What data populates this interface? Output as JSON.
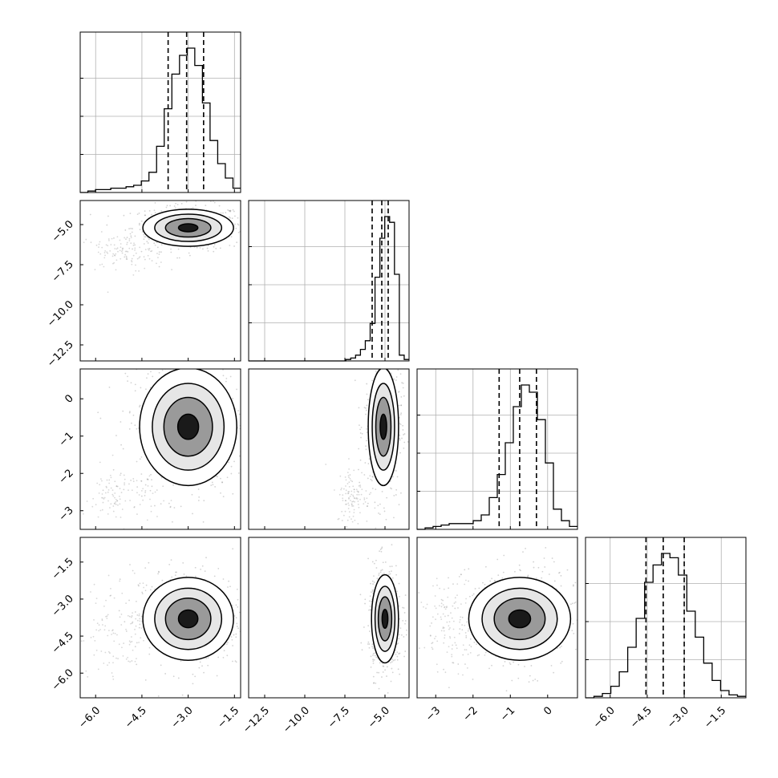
{
  "chart_data": {
    "type": "corner",
    "parameters": 4,
    "colors": {
      "line": "#000000",
      "grid": "#b0b0b0",
      "points": "#7f7f7f",
      "quantile_dash": "#000000"
    },
    "axes_ranges": [
      [
        -6.5,
        -1.3
      ],
      [
        -13.5,
        -3.5
      ],
      [
        -3.5,
        0.8
      ],
      [
        -7.0,
        -0.5
      ]
    ],
    "tick_values": [
      [
        -6.0,
        -4.5,
        -3.0,
        -1.5
      ],
      [
        -12.5,
        -10.0,
        -7.5,
        -5.0
      ],
      [
        -3,
        -2,
        -1,
        0
      ],
      [
        -6.0,
        -4.5,
        -3.0,
        -1.5
      ]
    ],
    "tick_labels": [
      [
        "−6.0",
        "−4.5",
        "−3.0",
        "−1.5"
      ],
      [
        "−12.5",
        "−10.0",
        "−7.5",
        "−5.0"
      ],
      [
        "−3",
        "−2",
        "−1",
        "0"
      ],
      [
        "−6.0",
        "−4.5",
        "−3.0",
        "−1.5"
      ]
    ],
    "quantiles": [
      [
        -3.65,
        -3.05,
        -2.5
      ],
      [
        -5.8,
        -5.2,
        -4.8
      ],
      [
        -1.3,
        -0.75,
        -0.3
      ],
      [
        -4.55,
        -3.85,
        -3.0
      ]
    ],
    "histograms": [
      {
        "range": [
          -6.5,
          -1.3
        ],
        "counts": [
          0,
          1,
          2,
          2,
          3,
          3,
          4,
          5,
          8,
          14,
          32,
          58,
          82,
          95,
          100,
          88,
          62,
          36,
          20,
          10,
          3
        ]
      },
      {
        "range": [
          -13.5,
          -3.5
        ],
        "counts": [
          0,
          0,
          0,
          0,
          0,
          0,
          0,
          0,
          0,
          0,
          0,
          0,
          0,
          0,
          0,
          0,
          0,
          0,
          0,
          0,
          1,
          2,
          4,
          8,
          14,
          26,
          58,
          85,
          100,
          96,
          60,
          4,
          1
        ]
      },
      {
        "range": [
          -3.5,
          0.8
        ],
        "counts": [
          0,
          1,
          2,
          3,
          4,
          4,
          4,
          6,
          10,
          22,
          38,
          60,
          85,
          100,
          95,
          76,
          46,
          14,
          6,
          2
        ]
      },
      {
        "range": [
          -7.0,
          -0.5
        ],
        "counts": [
          0,
          1,
          3,
          8,
          18,
          35,
          55,
          80,
          92,
          100,
          97,
          85,
          60,
          42,
          24,
          12,
          5,
          2,
          1
        ]
      }
    ],
    "modes": [
      [
        -3.0,
        -5.2
      ],
      [
        -3.0,
        -0.75
      ],
      [
        -5.1,
        -0.75
      ],
      [
        -3.0,
        -3.8
      ],
      [
        -5.0,
        -3.8
      ],
      [
        -0.75,
        -3.8
      ]
    ],
    "spreads": [
      [
        0.7,
        0.55
      ],
      [
        0.75,
        0.75
      ],
      [
        0.45,
        0.75
      ],
      [
        0.7,
        0.8
      ],
      [
        0.4,
        0.85
      ],
      [
        0.65,
        0.8
      ]
    ],
    "secondary_clusters": [
      {
        "pair": [
          0,
          1
        ],
        "center": [
          -5.2,
          -6.8
        ],
        "spread": [
          0.7,
          0.6
        ]
      },
      {
        "pair": [
          0,
          2
        ],
        "center": [
          -5.2,
          -2.6
        ],
        "spread": [
          0.6,
          0.4
        ]
      },
      {
        "pair": [
          1,
          2
        ],
        "center": [
          -7.0,
          -2.6
        ],
        "spread": [
          0.5,
          0.4
        ]
      },
      {
        "pair": [
          0,
          3
        ],
        "center": [
          -5.2,
          -4.2
        ],
        "spread": [
          0.7,
          1.0
        ]
      },
      {
        "pair": [
          2,
          3
        ],
        "center": [
          -2.6,
          -4.0
        ],
        "spread": [
          0.4,
          0.9
        ]
      }
    ]
  }
}
